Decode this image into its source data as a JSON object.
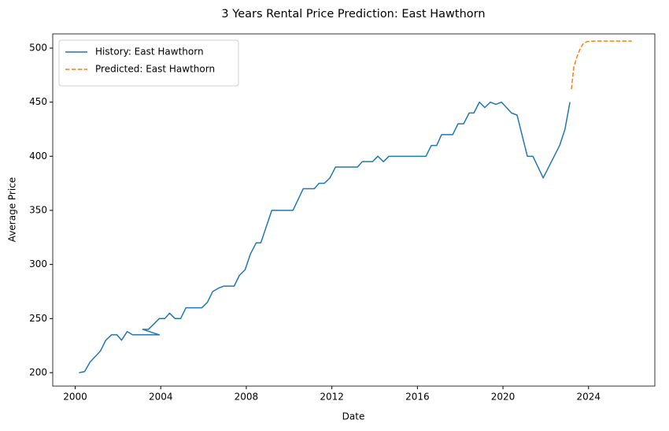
{
  "chart_data": {
    "type": "line",
    "title": "3 Years Rental Price Prediction: East Hawthorn",
    "x_label": "Date",
    "y_label": "Average Price",
    "xlim": [
      1998.95,
      2027.1
    ],
    "ylim": [
      187.6,
      513.1
    ],
    "xticks": [
      2000,
      2004,
      2008,
      2012,
      2016,
      2020,
      2024
    ],
    "yticks": [
      200,
      250,
      300,
      350,
      400,
      450,
      500
    ],
    "legend": "upper left",
    "series": [
      {
        "name": "History: East Hawthorn",
        "color": "#1f77b4",
        "linestyle": "solid",
        "x": [
          2000.18,
          2000.44,
          2000.7,
          2001.18,
          2001.43,
          2001.7,
          2001.95,
          2002.17,
          2002.43,
          2002.68,
          2002.94,
          2003.42,
          2003.93,
          2003.16,
          2003.42,
          2003.68,
          2003.93,
          2004.19,
          2004.41,
          2004.67,
          2004.93,
          2005.18,
          2005.92,
          2006.18,
          2006.43,
          2006.69,
          2006.95,
          2007.43,
          2007.68,
          2007.94,
          2008.2,
          2008.46,
          2008.68,
          2009.19,
          2010.18,
          2010.66,
          2011.18,
          2011.4,
          2011.65,
          2011.91,
          2012.17,
          2013.2,
          2013.42,
          2013.9,
          2014.15,
          2014.41,
          2014.67,
          2016.4,
          2016.65,
          2016.9,
          2017.13,
          2017.65,
          2017.9,
          2018.16,
          2018.42,
          2018.64,
          2018.9,
          2019.15,
          2019.41,
          2019.67,
          2019.93,
          2020.4,
          2020.66,
          2021.14,
          2021.4,
          2021.88,
          2022.65,
          2022.9,
          2023.13
        ],
        "values": [
          200,
          201,
          210,
          220,
          230,
          235,
          235,
          230,
          238,
          235,
          235,
          235,
          235,
          240,
          240,
          245,
          250,
          250,
          255,
          250,
          250,
          260,
          260,
          265,
          275,
          278,
          280,
          280,
          290,
          295,
          310,
          320,
          320,
          350,
          350,
          370,
          370,
          375,
          375,
          380,
          390,
          390,
          395,
          395,
          400,
          395,
          400,
          400,
          410,
          410,
          420,
          420,
          430,
          430,
          440,
          440,
          450,
          445,
          450,
          448,
          450,
          440,
          438,
          400,
          400,
          380,
          410,
          425,
          450
        ]
      },
      {
        "name": "Predicted: East Hawthorn",
        "color": "#ff7f0e",
        "linestyle": "dashed",
        "x": [
          2023.2,
          2023.31,
          2023.46,
          2023.6,
          2023.75,
          2023.93,
          2024.26,
          2025.0,
          2025.5,
          2026.02
        ],
        "values": [
          462,
          482,
          492,
          499,
          504,
          506,
          506.5,
          506.5,
          506.5,
          506.5
        ]
      }
    ]
  }
}
